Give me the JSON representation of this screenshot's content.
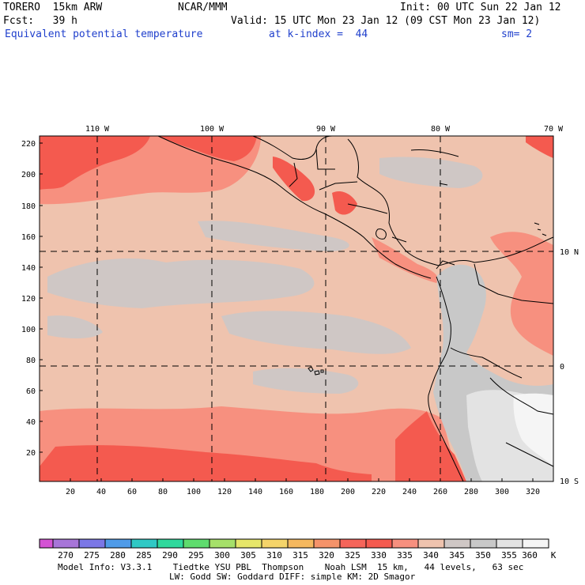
{
  "header": {
    "model": "TORERO  15km ARW",
    "center": "NCAR/MMM",
    "init": "Init: 00 UTC Sun 22 Jan 12",
    "fcst": "Fcst:   39 h",
    "valid": "Valid: 15 UTC Mon 23 Jan 12 (09 CST Mon 23 Jan 12)",
    "field": "Equivalent potential temperature",
    "level": "at k-index =  44",
    "smooth": "sm= 2"
  },
  "map": {
    "lon_labels": [
      "110 W",
      "100 W",
      "90 W",
      "80 W",
      "70 W"
    ],
    "lat_labels": [
      "10 N",
      "0",
      "10 S"
    ],
    "y_ticks": [
      "220",
      "200",
      "180",
      "160",
      "140",
      "120",
      "100",
      "80",
      "60",
      "40",
      "20"
    ],
    "x_ticks": [
      "20",
      "40",
      "60",
      "80",
      "100",
      "120",
      "140",
      "160",
      "180",
      "200",
      "220",
      "240",
      "260",
      "280",
      "300",
      "320"
    ],
    "colors": {
      "c330": "#f45a4f",
      "c335": "#f7907f",
      "c340": "#efc3ae",
      "c345": "#cfc7c5",
      "c350": "#c8c8c8",
      "c355": "#e3e3e3",
      "c360": "#f5f5f5"
    }
  },
  "colorbar": {
    "labels": [
      "270",
      "275",
      "280",
      "285",
      "290",
      "295",
      "300",
      "305",
      "310",
      "315",
      "320",
      "325",
      "330",
      "335",
      "340",
      "345",
      "350",
      "355",
      "360"
    ],
    "unit": "K",
    "colors": [
      "#d453d4",
      "#a775d8",
      "#7b77e6",
      "#4f9be8",
      "#2fc9c5",
      "#2fd99c",
      "#5fdc6e",
      "#a6e06a",
      "#e6e66a",
      "#f5d46a",
      "#f5b85f",
      "#f5936a",
      "#f5655a",
      "#f45a4f",
      "#f7907f",
      "#efc3ae",
      "#cfc7c5",
      "#c8c8c8",
      "#e3e3e3",
      "#f5f5f5"
    ]
  },
  "footer": {
    "line1": "Model Info: V3.3.1    Tiedtke YSU PBL  Thompson    Noah LSM  15 km,   44 levels,   63 sec",
    "line2": "LW: Godd SW: Goddard DIFF: simple KM: 2D Smagor"
  }
}
